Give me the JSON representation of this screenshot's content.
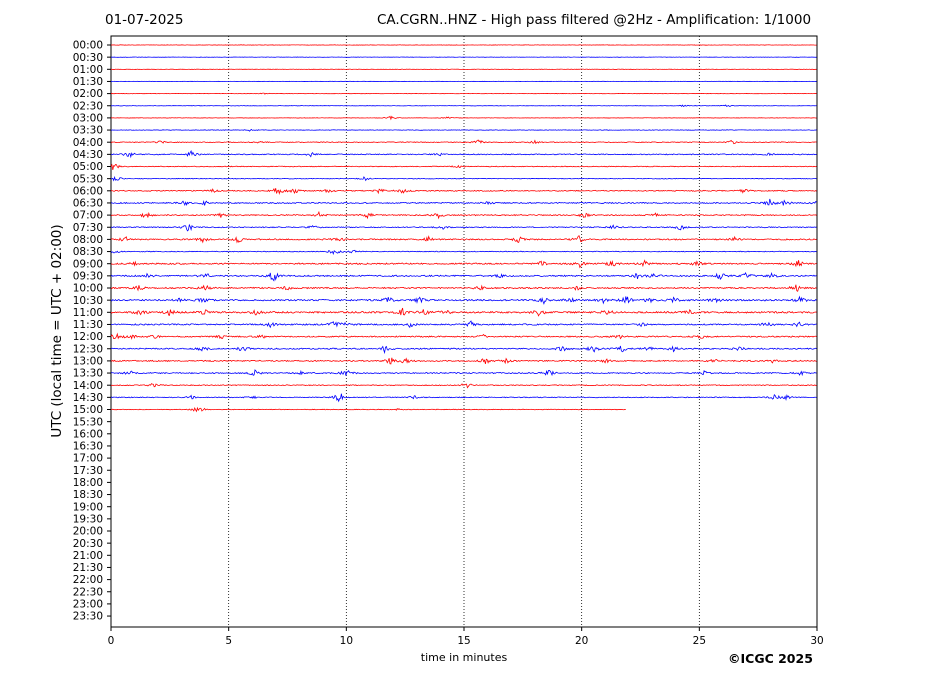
{
  "header": {
    "date": "01-07-2025",
    "title": "CA.CGRN..HNZ - High pass filtered @2Hz - Amplification: 1/1000"
  },
  "credit": "©ICGC 2025",
  "colors": {
    "trace_a": "#ff0000",
    "trace_b": "#0000ff",
    "grid": "#000000"
  },
  "chart_data": {
    "type": "line",
    "xlabel": "time in minutes",
    "ylabel": "UTC (local time = UTC + 02:00)",
    "xlim": [
      0,
      30
    ],
    "xticks": [
      0,
      5,
      10,
      15,
      20,
      25,
      30
    ],
    "x_gridlines": [
      5,
      10,
      15,
      20,
      25
    ],
    "grid": "dotted vertical",
    "row_labels": [
      "00:00",
      "00:30",
      "01:00",
      "01:30",
      "02:00",
      "02:30",
      "03:00",
      "03:30",
      "04:00",
      "04:30",
      "05:00",
      "05:30",
      "06:00",
      "06:30",
      "07:00",
      "07:30",
      "08:00",
      "08:30",
      "09:00",
      "09:30",
      "10:00",
      "10:30",
      "11:00",
      "11:30",
      "12:00",
      "12:30",
      "13:00",
      "13:30",
      "14:00",
      "14:30",
      "15:00",
      "15:30",
      "16:00",
      "16:30",
      "17:00",
      "17:30",
      "18:00",
      "18:30",
      "19:00",
      "19:30",
      "20:00",
      "20:30",
      "21:00",
      "21:30",
      "22:00",
      "22:30",
      "23:00",
      "23:30"
    ],
    "series": [
      {
        "row": "00:00",
        "end": 30,
        "noise": 0.3,
        "bursts": []
      },
      {
        "row": "00:30",
        "end": 30,
        "noise": 0.3,
        "bursts": []
      },
      {
        "row": "01:00",
        "end": 30,
        "noise": 0.3,
        "bursts": []
      },
      {
        "row": "01:30",
        "end": 30,
        "noise": 0.3,
        "bursts": []
      },
      {
        "row": "02:00",
        "end": 30,
        "noise": 0.3,
        "bursts": [
          [
            6.5,
            0.6
          ]
        ]
      },
      {
        "row": "02:30",
        "end": 30,
        "noise": 0.3,
        "bursts": [
          [
            24.3,
            1.2
          ],
          [
            26.2,
            1.0
          ]
        ]
      },
      {
        "row": "03:00",
        "end": 30,
        "noise": 0.3,
        "bursts": [
          [
            11.9,
            2.0
          ],
          [
            14.3,
            1.0
          ]
        ]
      },
      {
        "row": "03:30",
        "end": 30,
        "noise": 0.4,
        "bursts": [
          [
            5.9,
            1.0
          ]
        ]
      },
      {
        "row": "04:00",
        "end": 30,
        "noise": 0.6,
        "bursts": [
          [
            2.1,
            1.5
          ],
          [
            6.3,
            2.0
          ],
          [
            15.6,
            3.0
          ],
          [
            18.0,
            1.5
          ],
          [
            26.4,
            2.0
          ]
        ]
      },
      {
        "row": "04:30",
        "end": 30,
        "noise": 0.8,
        "bursts": [
          [
            0.8,
            3.5
          ],
          [
            3.4,
            3.0
          ],
          [
            8.5,
            2.0
          ],
          [
            13.9,
            2.0
          ],
          [
            28.0,
            1.5
          ]
        ]
      },
      {
        "row": "05:00",
        "end": 30,
        "noise": 0.6,
        "bursts": [
          [
            0.1,
            4.0
          ],
          [
            14.8,
            2.0
          ]
        ]
      },
      {
        "row": "05:30",
        "end": 30,
        "noise": 0.5,
        "bursts": [
          [
            0.2,
            3.0
          ],
          [
            10.8,
            2.0
          ]
        ]
      },
      {
        "row": "06:00",
        "end": 30,
        "noise": 0.8,
        "bursts": [
          [
            4.3,
            2.0
          ],
          [
            7.1,
            5.0
          ],
          [
            7.8,
            3.0
          ],
          [
            9.3,
            3.0
          ],
          [
            11.4,
            3.5
          ],
          [
            12.4,
            3.0
          ],
          [
            26.9,
            2.0
          ]
        ]
      },
      {
        "row": "06:30",
        "end": 30,
        "noise": 0.9,
        "bursts": [
          [
            3.1,
            3.5
          ],
          [
            4.0,
            2.5
          ],
          [
            16.0,
            1.5
          ],
          [
            28.0,
            4.0
          ],
          [
            28.6,
            3.0
          ],
          [
            30.0,
            2.0
          ]
        ]
      },
      {
        "row": "07:00",
        "end": 30,
        "noise": 0.9,
        "bursts": [
          [
            1.5,
            3.5
          ],
          [
            4.7,
            3.0
          ],
          [
            8.8,
            3.5
          ],
          [
            10.9,
            3.0
          ],
          [
            13.9,
            3.0
          ],
          [
            20.1,
            3.0
          ],
          [
            23.1,
            2.0
          ]
        ]
      },
      {
        "row": "07:30",
        "end": 30,
        "noise": 0.8,
        "bursts": [
          [
            3.3,
            4.5
          ],
          [
            8.6,
            2.0
          ],
          [
            14.1,
            2.0
          ],
          [
            21.4,
            2.5
          ],
          [
            24.2,
            3.0
          ]
        ]
      },
      {
        "row": "08:00",
        "end": 30,
        "noise": 1.0,
        "bursts": [
          [
            0.6,
            3.0
          ],
          [
            3.9,
            2.5
          ],
          [
            5.4,
            3.0
          ],
          [
            9.7,
            3.0
          ],
          [
            13.5,
            2.5
          ],
          [
            17.3,
            3.5
          ],
          [
            19.9,
            3.5
          ],
          [
            26.5,
            2.0
          ]
        ]
      },
      {
        "row": "08:30",
        "end": 30,
        "noise": 0.6,
        "bursts": [
          [
            0.2,
            2.0
          ],
          [
            9.5,
            4.0
          ],
          [
            10.3,
            2.0
          ]
        ]
      },
      {
        "row": "09:00",
        "end": 30,
        "noise": 1.1,
        "bursts": [
          [
            1.0,
            2.5
          ],
          [
            18.3,
            3.0
          ],
          [
            19.9,
            4.0
          ],
          [
            21.3,
            3.5
          ],
          [
            22.7,
            3.0
          ],
          [
            24.9,
            2.5
          ],
          [
            29.2,
            4.0
          ]
        ]
      },
      {
        "row": "09:30",
        "end": 30,
        "noise": 1.1,
        "bursts": [
          [
            1.6,
            2.5
          ],
          [
            4.0,
            3.5
          ],
          [
            6.9,
            6.0
          ],
          [
            16.6,
            2.0
          ],
          [
            22.4,
            3.5
          ],
          [
            23.1,
            3.0
          ],
          [
            25.9,
            3.5
          ],
          [
            27.0,
            3.0
          ],
          [
            28.1,
            3.0
          ]
        ]
      },
      {
        "row": "10:00",
        "end": 30,
        "noise": 1.1,
        "bursts": [
          [
            1.2,
            2.5
          ],
          [
            4.0,
            3.0
          ],
          [
            7.5,
            2.0
          ],
          [
            15.7,
            2.0
          ],
          [
            19.8,
            2.0
          ],
          [
            29.1,
            5.0
          ]
        ]
      },
      {
        "row": "10:30",
        "end": 30,
        "noise": 1.2,
        "bursts": [
          [
            2.9,
            2.5
          ],
          [
            3.9,
            3.0
          ],
          [
            11.8,
            3.5
          ],
          [
            13.1,
            3.0
          ],
          [
            18.4,
            3.5
          ],
          [
            19.5,
            2.5
          ],
          [
            20.9,
            3.0
          ],
          [
            21.9,
            4.0
          ],
          [
            22.9,
            3.0
          ],
          [
            23.9,
            3.0
          ],
          [
            25.7,
            3.0
          ],
          [
            29.3,
            4.0
          ]
        ]
      },
      {
        "row": "11:00",
        "end": 30,
        "noise": 1.3,
        "bursts": [
          [
            1.2,
            3.0
          ],
          [
            2.5,
            3.0
          ],
          [
            4.0,
            2.5
          ],
          [
            6.2,
            3.0
          ],
          [
            12.4,
            4.0
          ],
          [
            13.3,
            3.5
          ],
          [
            14.2,
            3.0
          ],
          [
            18.2,
            4.0
          ],
          [
            21.1,
            3.0
          ],
          [
            24.6,
            2.0
          ]
        ]
      },
      {
        "row": "11:30",
        "end": 30,
        "noise": 1.1,
        "bursts": [
          [
            6.8,
            3.0
          ],
          [
            9.5,
            3.5
          ],
          [
            10.0,
            3.0
          ],
          [
            12.7,
            2.5
          ],
          [
            15.3,
            3.0
          ],
          [
            22.5,
            2.0
          ],
          [
            27.9,
            3.5
          ],
          [
            29.2,
            2.5
          ]
        ]
      },
      {
        "row": "12:00",
        "end": 30,
        "noise": 1.0,
        "bursts": [
          [
            0.2,
            4.0
          ],
          [
            0.8,
            3.0
          ],
          [
            1.8,
            2.0
          ],
          [
            4.7,
            2.0
          ],
          [
            6.4,
            2.5
          ],
          [
            15.8,
            2.0
          ],
          [
            21.6,
            2.0
          ],
          [
            25.1,
            2.0
          ]
        ]
      },
      {
        "row": "12:30",
        "end": 30,
        "noise": 1.0,
        "bursts": [
          [
            3.9,
            2.5
          ],
          [
            5.6,
            3.0
          ],
          [
            11.6,
            4.0
          ],
          [
            19.2,
            3.0
          ],
          [
            20.5,
            4.0
          ],
          [
            21.7,
            3.5
          ],
          [
            22.8,
            3.0
          ],
          [
            23.9,
            3.0
          ],
          [
            26.7,
            2.0
          ]
        ]
      },
      {
        "row": "13:00",
        "end": 30,
        "noise": 1.0,
        "bursts": [
          [
            11.9,
            4.0
          ],
          [
            12.5,
            3.0
          ],
          [
            15.9,
            3.0
          ],
          [
            16.8,
            2.5
          ],
          [
            21.0,
            2.5
          ],
          [
            25.6,
            2.5
          ],
          [
            28.1,
            2.0
          ]
        ]
      },
      {
        "row": "13:30",
        "end": 30,
        "noise": 0.9,
        "bursts": [
          [
            0.8,
            3.0
          ],
          [
            6.1,
            3.0
          ],
          [
            8.0,
            2.0
          ],
          [
            10.0,
            4.0
          ],
          [
            18.6,
            3.5
          ],
          [
            25.2,
            2.0
          ],
          [
            29.3,
            2.0
          ]
        ]
      },
      {
        "row": "14:00",
        "end": 30,
        "noise": 0.7,
        "bursts": [
          [
            1.8,
            2.0
          ],
          [
            15.1,
            3.0
          ]
        ]
      },
      {
        "row": "14:30",
        "end": 30,
        "noise": 0.7,
        "bursts": [
          [
            3.4,
            2.0
          ],
          [
            6.0,
            1.5
          ],
          [
            9.7,
            6.0
          ],
          [
            12.9,
            1.5
          ],
          [
            28.2,
            3.0
          ],
          [
            28.7,
            2.0
          ]
        ]
      },
      {
        "row": "15:00",
        "end": 21.9,
        "noise": 0.5,
        "bursts": [
          [
            3.6,
            2.0
          ],
          [
            3.9,
            1.5
          ],
          [
            12.2,
            0.8
          ]
        ]
      }
    ]
  }
}
